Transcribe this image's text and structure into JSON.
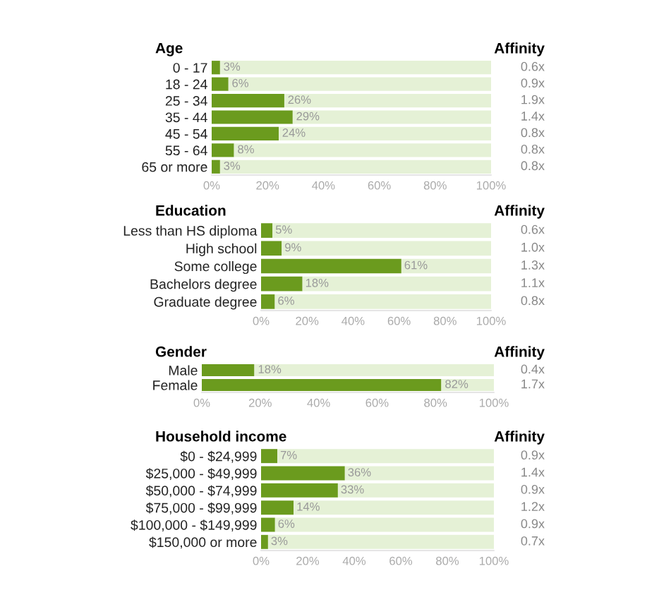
{
  "chart_data": [
    {
      "type": "bar",
      "orientation": "horizontal",
      "stacked": true,
      "title": "Age",
      "categories": [
        "0 - 17",
        "18 - 24",
        "25 - 34",
        "35 - 44",
        "45 - 54",
        "55 - 64",
        "65 or more"
      ],
      "series": [
        {
          "color": "#6b9b1e",
          "values": [
            3,
            6,
            26,
            29,
            24,
            8,
            3
          ],
          "value_labels": [
            "3%",
            "6%",
            "26%",
            "29%",
            "24%",
            "8%",
            "3%"
          ]
        },
        {
          "color": "#e5f1d6",
          "values": [
            97,
            94,
            74,
            71,
            76,
            92,
            97
          ]
        }
      ],
      "xlim": [
        0,
        100
      ],
      "xticks": [
        {
          "value": 0,
          "label": "0%"
        },
        {
          "value": 20,
          "label": "20%"
        },
        {
          "value": 40,
          "label": "40%"
        },
        {
          "value": 60,
          "label": "60%"
        },
        {
          "value": 80,
          "label": "80%"
        },
        {
          "value": 100,
          "label": "100%"
        }
      ],
      "grid": false,
      "annotations": [
        "Affinity",
        "0.6x",
        "0.9x",
        "1.9x",
        "1.4x",
        "0.8x",
        "0.8x",
        "0.8x"
      ]
    },
    {
      "type": "bar",
      "orientation": "horizontal",
      "stacked": true,
      "title": "Education",
      "categories": [
        "Less than HS diploma",
        "High school",
        "Some college",
        "Bachelors degree",
        "Graduate degree"
      ],
      "series": [
        {
          "color": "#6b9b1e",
          "values": [
            5,
            9,
            61,
            18,
            6
          ],
          "value_labels": [
            "5%",
            "9%",
            "61%",
            "18%",
            "6%"
          ]
        },
        {
          "color": "#e5f1d6",
          "values": [
            95,
            91,
            39,
            82,
            94
          ]
        }
      ],
      "xlim": [
        0,
        100
      ],
      "xticks": [
        {
          "value": 0,
          "label": "0%"
        },
        {
          "value": 20,
          "label": "20%"
        },
        {
          "value": 40,
          "label": "40%"
        },
        {
          "value": 60,
          "label": "60%"
        },
        {
          "value": 80,
          "label": "80%"
        },
        {
          "value": 100,
          "label": "100%"
        }
      ],
      "grid": false,
      "annotations": [
        "Affinity",
        "0.6x",
        "1.0x",
        "1.3x",
        "1.1x",
        "0.8x"
      ]
    },
    {
      "type": "bar",
      "orientation": "horizontal",
      "stacked": true,
      "title": "Gender",
      "categories": [
        "Male",
        "Female"
      ],
      "series": [
        {
          "color": "#6b9b1e",
          "values": [
            18,
            82
          ],
          "value_labels": [
            "18%",
            "82%"
          ]
        },
        {
          "color": "#e5f1d6",
          "values": [
            82,
            18
          ]
        }
      ],
      "xlim": [
        0,
        100
      ],
      "xticks": [
        {
          "value": 0,
          "label": "0%"
        },
        {
          "value": 20,
          "label": "20%"
        },
        {
          "value": 40,
          "label": "40%"
        },
        {
          "value": 60,
          "label": "60%"
        },
        {
          "value": 80,
          "label": "80%"
        },
        {
          "value": 100,
          "label": "100%"
        }
      ],
      "grid": false,
      "annotations": [
        "Affinity",
        "0.4x",
        "1.7x"
      ]
    },
    {
      "type": "bar",
      "orientation": "horizontal",
      "stacked": true,
      "title": "Household income",
      "categories": [
        "$0 - $24,999",
        "$25,000 - $49,999",
        "$50,000 - $74,999",
        "$75,000 - $99,999",
        "$100,000 - $149,999",
        "$150,000 or more"
      ],
      "series": [
        {
          "color": "#6b9b1e",
          "values": [
            7,
            36,
            33,
            14,
            6,
            3
          ],
          "value_labels": [
            "7%",
            "36%",
            "33%",
            "14%",
            "6%",
            "3%"
          ]
        },
        {
          "color": "#e5f1d6",
          "values": [
            93,
            64,
            67,
            86,
            94,
            97
          ]
        }
      ],
      "xlim": [
        0,
        100
      ],
      "xticks": [
        {
          "value": 0,
          "label": "0%"
        },
        {
          "value": 20,
          "label": "20%"
        },
        {
          "value": 40,
          "label": "40%"
        },
        {
          "value": 60,
          "label": "60%"
        },
        {
          "value": 80,
          "label": "80%"
        },
        {
          "value": 100,
          "label": "100%"
        }
      ],
      "grid": false,
      "annotations": [
        "Affinity",
        "0.9x",
        "1.4x",
        "0.9x",
        "1.2x",
        "0.9x",
        "0.7x"
      ]
    }
  ]
}
